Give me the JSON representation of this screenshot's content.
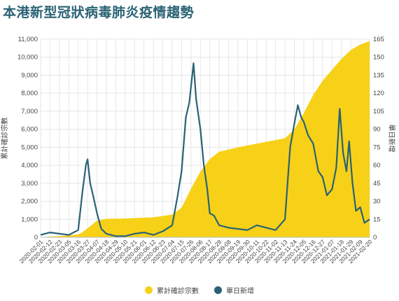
{
  "header": {
    "title": "本港新型冠狀病毒肺炎疫情趨勢"
  },
  "legend": {
    "cumulative": "累計確診宗數",
    "daily": "單日新增"
  },
  "colors": {
    "cumulative": "#f7d117",
    "daily": "#2a6275",
    "grid": "#e6e6e6"
  },
  "chart_data": {
    "type": "area+line",
    "title": "本港新型冠狀病毒肺炎疫情趨勢",
    "ylabel_left": "累計確診宗數",
    "ylabel_right": "單日新增",
    "ylim_left": [
      0,
      11000
    ],
    "ylim_right": [
      0,
      165
    ],
    "yticks_left": [
      "0",
      "1,000",
      "2,000",
      "3,000",
      "4,000",
      "5,000",
      "6,000",
      "7,000",
      "8,000",
      "9,000",
      "10,000",
      "11,000"
    ],
    "yticks_right": [
      "0",
      "15",
      "30",
      "45",
      "60",
      "75",
      "90",
      "105",
      "120",
      "135",
      "150",
      "165"
    ],
    "x_ticks": [
      "2020-02-01",
      "2020-02-12",
      "2020-02-23",
      "2020-03-05",
      "2020-03-16",
      "2020-03-27",
      "2020-04-07",
      "2020-04-18",
      "2020-04-29",
      "2020-05-10",
      "2020-05-21",
      "2020-06-01",
      "2020-06-12",
      "2020-06-23",
      "2020-07-04",
      "2020-07-15",
      "2020-07-26",
      "2020-08-06",
      "2020-08-17",
      "2020-08-28",
      "2020-09-08",
      "2020-09-19",
      "2020-09-30",
      "2020-10-11",
      "2020-10-22",
      "2020-11-02",
      "2020-11-13",
      "2020-11-24",
      "2020-12-05",
      "2020-12-16",
      "2020-12-27",
      "2021-01-07",
      "2021-01-18",
      "2021-01-29",
      "2021-02-09",
      "2021-02-20"
    ],
    "series": [
      {
        "name": "累計確診宗數",
        "kind": "area",
        "axis": "left",
        "points": [
          [
            "2020-02-01",
            13
          ],
          [
            "2020-02-23",
            70
          ],
          [
            "2020-03-05",
            105
          ],
          [
            "2020-03-16",
            160
          ],
          [
            "2020-03-20",
            250
          ],
          [
            "2020-03-27",
            500
          ],
          [
            "2020-04-07",
            920
          ],
          [
            "2020-04-18",
            1025
          ],
          [
            "2020-05-10",
            1045
          ],
          [
            "2020-06-12",
            1110
          ],
          [
            "2020-07-04",
            1260
          ],
          [
            "2020-07-15",
            1650
          ],
          [
            "2020-07-26",
            2700
          ],
          [
            "2020-08-06",
            3650
          ],
          [
            "2020-08-17",
            4350
          ],
          [
            "2020-08-28",
            4750
          ],
          [
            "2020-09-19",
            5000
          ],
          [
            "2020-10-22",
            5300
          ],
          [
            "2020-11-13",
            5500
          ],
          [
            "2020-11-24",
            6000
          ],
          [
            "2020-12-05",
            6900
          ],
          [
            "2020-12-16",
            7900
          ],
          [
            "2020-12-27",
            8700
          ],
          [
            "2021-01-07",
            9300
          ],
          [
            "2021-01-18",
            9900
          ],
          [
            "2021-01-29",
            10400
          ],
          [
            "2021-02-09",
            10700
          ],
          [
            "2021-02-20",
            10900
          ]
        ]
      },
      {
        "name": "單日新增",
        "kind": "line",
        "axis": "right",
        "points": [
          [
            "2020-02-01",
            2
          ],
          [
            "2020-02-12",
            4
          ],
          [
            "2020-02-23",
            3
          ],
          [
            "2020-03-05",
            2
          ],
          [
            "2020-03-16",
            6
          ],
          [
            "2020-03-21",
            38
          ],
          [
            "2020-03-25",
            60
          ],
          [
            "2020-03-27",
            65
          ],
          [
            "2020-03-30",
            45
          ],
          [
            "2020-04-03",
            33
          ],
          [
            "2020-04-07",
            20
          ],
          [
            "2020-04-12",
            7
          ],
          [
            "2020-04-18",
            3
          ],
          [
            "2020-04-29",
            1
          ],
          [
            "2020-05-10",
            1
          ],
          [
            "2020-05-21",
            3
          ],
          [
            "2020-06-01",
            4
          ],
          [
            "2020-06-12",
            2
          ],
          [
            "2020-06-23",
            5
          ],
          [
            "2020-07-04",
            10
          ],
          [
            "2020-07-10",
            33
          ],
          [
            "2020-07-15",
            55
          ],
          [
            "2020-07-20",
            100
          ],
          [
            "2020-07-24",
            112
          ],
          [
            "2020-07-29",
            145
          ],
          [
            "2020-08-01",
            115
          ],
          [
            "2020-08-06",
            90
          ],
          [
            "2020-08-10",
            60
          ],
          [
            "2020-08-14",
            40
          ],
          [
            "2020-08-17",
            20
          ],
          [
            "2020-08-22",
            18
          ],
          [
            "2020-08-28",
            10
          ],
          [
            "2020-09-08",
            8
          ],
          [
            "2020-09-19",
            7
          ],
          [
            "2020-09-30",
            6
          ],
          [
            "2020-10-11",
            10
          ],
          [
            "2020-10-22",
            8
          ],
          [
            "2020-11-02",
            6
          ],
          [
            "2020-11-13",
            15
          ],
          [
            "2020-11-19",
            75
          ],
          [
            "2020-11-24",
            95
          ],
          [
            "2020-11-28",
            110
          ],
          [
            "2020-12-02",
            100
          ],
          [
            "2020-12-05",
            96
          ],
          [
            "2020-12-10",
            85
          ],
          [
            "2020-12-16",
            78
          ],
          [
            "2020-12-22",
            55
          ],
          [
            "2020-12-27",
            50
          ],
          [
            "2021-01-01",
            35
          ],
          [
            "2021-01-07",
            40
          ],
          [
            "2021-01-12",
            58
          ],
          [
            "2021-01-16",
            107
          ],
          [
            "2021-01-20",
            70
          ],
          [
            "2021-01-24",
            55
          ],
          [
            "2021-01-27",
            80
          ],
          [
            "2021-01-31",
            45
          ],
          [
            "2021-02-04",
            22
          ],
          [
            "2021-02-09",
            25
          ],
          [
            "2021-02-14",
            12
          ],
          [
            "2021-02-20",
            15
          ]
        ]
      }
    ]
  }
}
